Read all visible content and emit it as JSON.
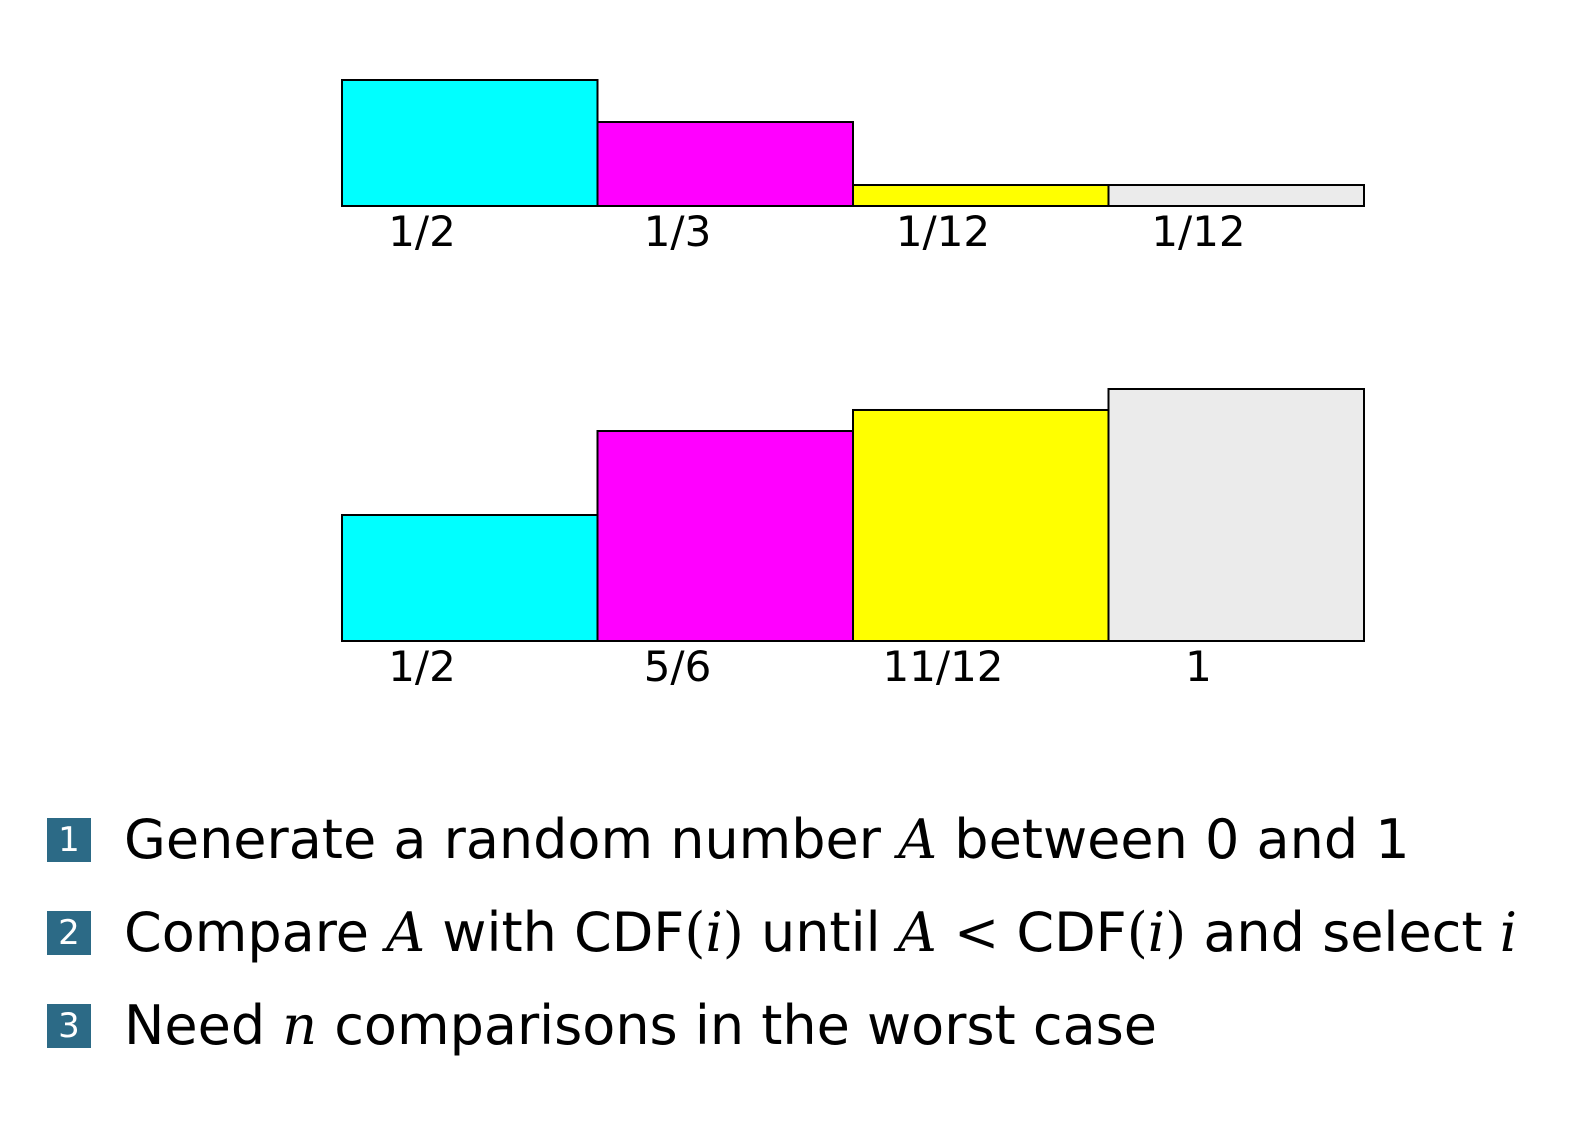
{
  "theme": {
    "badge_color": "#2c6a86",
    "stroke_color": "#000000"
  },
  "diagram": {
    "probability_row": {
      "values": [
        0.5,
        0.3333,
        0.0833,
        0.0833
      ],
      "labels": [
        "1/2",
        "1/3",
        "1/12",
        "1/12"
      ],
      "colors": [
        "#00ffff",
        "#ff00ff",
        "#ffff00",
        "#ebebeb"
      ]
    },
    "cdf_row": {
      "values": [
        0.5,
        0.8333,
        0.9167,
        1.0
      ],
      "labels": [
        "1/2",
        "5/6",
        "11/12",
        "1"
      ],
      "colors": [
        "#00ffff",
        "#ff00ff",
        "#ffff00",
        "#ebebeb"
      ]
    }
  },
  "steps": [
    {
      "number": "1",
      "text_a": "Generate a random number ",
      "var_a": "A",
      "text_b": " between 0 and 1"
    },
    {
      "number": "2",
      "text_a": "Compare ",
      "var_a": "A",
      "text_b": " with CDF",
      "open": "(",
      "var_i": "i",
      "close": ")",
      "text_c": " until ",
      "var_a2": "A",
      "lt": " < ",
      "text_d": "CDF",
      "open2": "(",
      "var_i2": "i",
      "close2": ")",
      "text_e": " and select ",
      "var_i3": "i"
    },
    {
      "number": "3",
      "text_a": "Need ",
      "var_n": "n",
      "text_b": " comparisons in the worst case"
    }
  ]
}
